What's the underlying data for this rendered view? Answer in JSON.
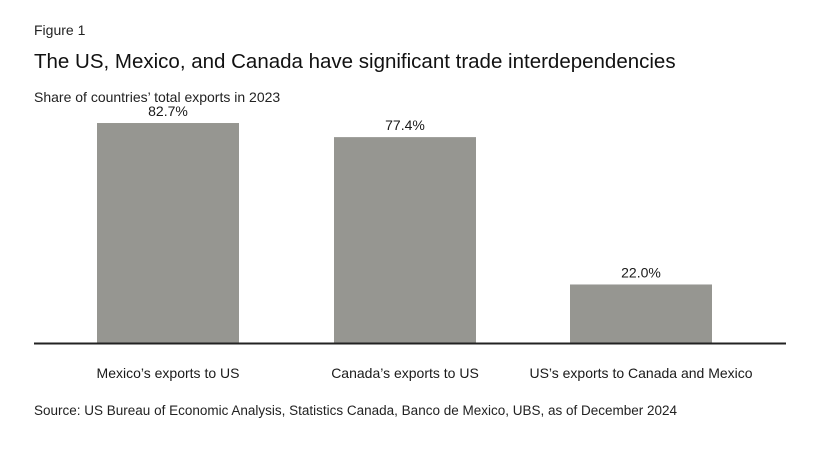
{
  "figure_label": "Figure 1",
  "title": "The US, Mexico, and Canada have significant trade interdependencies",
  "subtitle": "Share of countries’ total exports in 2023",
  "source": "Source: US Bureau of Economic Analysis, Statistics Canada, Banco de Mexico, UBS, as of December 2024",
  "colors": {
    "bar": "#969691",
    "axis": "#222222"
  },
  "chart_data": {
    "type": "bar",
    "title": "The US, Mexico, and Canada have significant trade interdependencies",
    "subtitle": "Share of countries’ total exports in 2023",
    "xlabel": "",
    "ylabel": "",
    "unit": "%",
    "categories": [
      "Mexico’s exports to US",
      "Canada’s exports to US",
      "US’s exports to Canada and Mexico"
    ],
    "values": [
      82.7,
      77.4,
      22.0
    ],
    "data_labels": [
      "82.7%",
      "77.4%",
      "22.0%"
    ],
    "ylim": [
      0,
      100
    ],
    "grid": false,
    "legend": "none"
  }
}
